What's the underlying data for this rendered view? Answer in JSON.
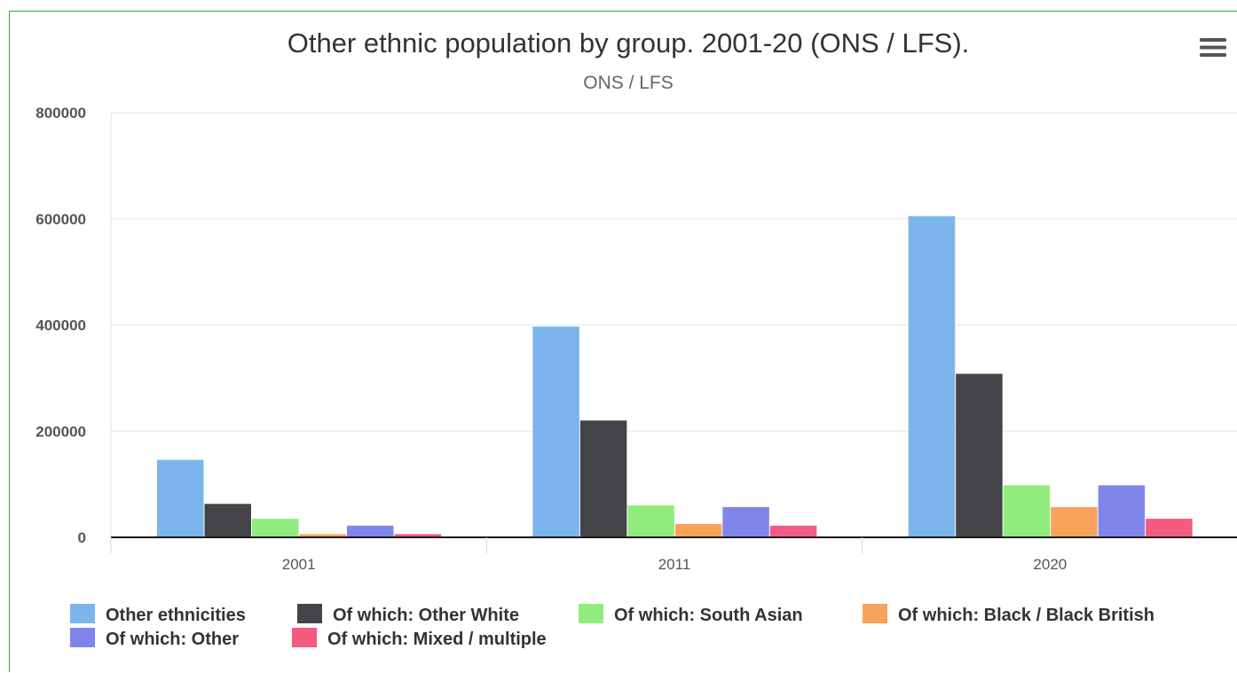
{
  "chart_data": {
    "type": "bar",
    "title": "Other ethnic population by group. 2001-20 (ONS / LFS).",
    "subtitle": "ONS / LFS",
    "xlabel": "",
    "ylabel": "",
    "categories": [
      "2001",
      "2011",
      "2020"
    ],
    "ylim": [
      0,
      800000
    ],
    "yticks": [
      0,
      200000,
      400000,
      600000,
      800000
    ],
    "grid": true,
    "legend_position": "bottom",
    "series": [
      {
        "name": "Other ethnicities",
        "color": "#7cb5ec",
        "values": [
          146000,
          397000,
          605000
        ]
      },
      {
        "name": "Of which: Other White",
        "color": "#434348",
        "values": [
          63000,
          220000,
          308000
        ]
      },
      {
        "name": "Of which: South Asian",
        "color": "#90ed7d",
        "values": [
          35000,
          60000,
          98000
        ]
      },
      {
        "name": "Of which: Black / Black British",
        "color": "#f7a35c",
        "values": [
          6000,
          25000,
          57000
        ]
      },
      {
        "name": "Of which: Other",
        "color": "#8085e9",
        "values": [
          22000,
          57000,
          98000
        ]
      },
      {
        "name": "Of which: Mixed / multiple",
        "color": "#f15c80",
        "values": [
          6000,
          22000,
          35000
        ]
      }
    ]
  },
  "menu": {
    "icon": "hamburger-menu-icon"
  }
}
